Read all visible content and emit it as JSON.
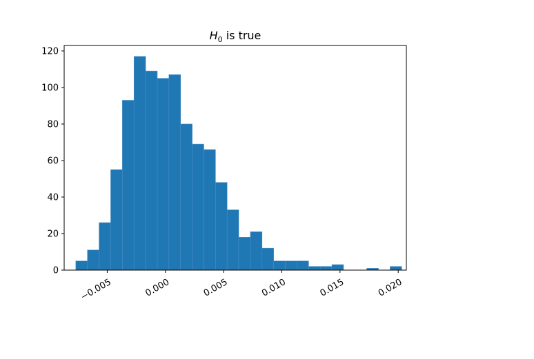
{
  "chart_data": {
    "type": "bar",
    "title": {
      "symbol": "H",
      "subscript": "0",
      "rest": " is true"
    },
    "xlabel": "",
    "ylabel": "",
    "bar_color": "#1f77b4",
    "bar_edge_color": "#4a8fc4",
    "bins": {
      "start": -0.0077,
      "width": 0.001
    },
    "values": [
      5,
      11,
      26,
      55,
      93,
      117,
      109,
      105,
      107,
      80,
      69,
      66,
      48,
      33,
      18,
      21,
      12,
      5,
      5,
      5,
      2,
      2,
      3,
      0,
      0,
      1,
      0,
      2
    ],
    "xlim": [
      -0.0087,
      0.0207
    ],
    "ylim": [
      0,
      123
    ],
    "xticks": [
      {
        "value": -0.005,
        "label": "−0.005"
      },
      {
        "value": 0.0,
        "label": "0.000"
      },
      {
        "value": 0.005,
        "label": "0.005"
      },
      {
        "value": 0.01,
        "label": "0.010"
      },
      {
        "value": 0.015,
        "label": "0.015"
      },
      {
        "value": 0.02,
        "label": "0.020"
      }
    ],
    "yticks": [
      {
        "value": 0,
        "label": "0"
      },
      {
        "value": 20,
        "label": "20"
      },
      {
        "value": 40,
        "label": "40"
      },
      {
        "value": 60,
        "label": "60"
      },
      {
        "value": 80,
        "label": "80"
      },
      {
        "value": 100,
        "label": "100"
      },
      {
        "value": 120,
        "label": "120"
      }
    ],
    "grid": false,
    "legend": "none"
  }
}
